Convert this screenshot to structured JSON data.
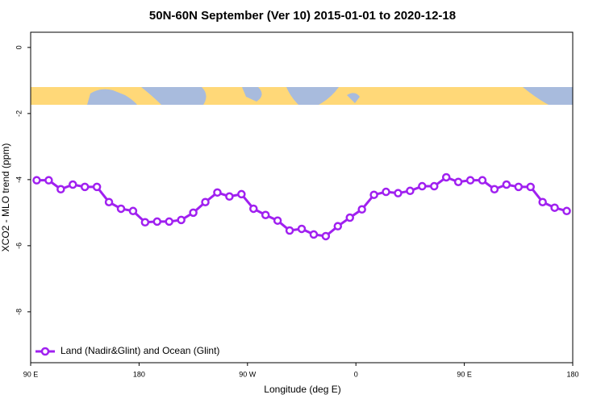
{
  "chart_data": {
    "type": "line",
    "title": "50N-60N September (Ver 10)   2015-01-01 to 2020-12-18",
    "xlabel": "Longitude (deg E)",
    "ylabel": "XCO2 - MLO trend (ppm)",
    "x": [
      95,
      105,
      115,
      125,
      135,
      145,
      155,
      165,
      175,
      185,
      195,
      205,
      215,
      225,
      235,
      245,
      255,
      265,
      275,
      285,
      295,
      305,
      315,
      325,
      335,
      345,
      355,
      365,
      375,
      385,
      395,
      405,
      415,
      425,
      435,
      445,
      455,
      465,
      475,
      485,
      495,
      505,
      515,
      525,
      535
    ],
    "series": [
      {
        "name": "Land (Nadir&Glint) and Ocean (Glint)",
        "color": "#a020f0",
        "values": [
          -4.02,
          -4.02,
          -4.29,
          -4.15,
          -4.22,
          -4.22,
          -4.68,
          -4.88,
          -4.95,
          -5.29,
          -5.27,
          -5.27,
          -5.22,
          -5.0,
          -4.68,
          -4.39,
          -4.51,
          -4.44,
          -4.88,
          -5.07,
          -5.24,
          -5.54,
          -5.49,
          -5.66,
          -5.71,
          -5.41,
          -5.15,
          -4.9,
          -4.46,
          -4.37,
          -4.41,
          -4.34,
          -4.2,
          -4.2,
          -3.93,
          -4.07,
          -4.02,
          -4.02,
          -4.29,
          -4.15,
          -4.22,
          -4.22,
          -4.68,
          -4.85,
          -4.95
        ]
      }
    ],
    "xlim": [
      90,
      540
    ],
    "ylim": [
      -9.54,
      0.46
    ],
    "xticks": [
      {
        "value": 90,
        "label": "90 E"
      },
      180,
      {
        "value": 270,
        "label": "90 W"
      },
      {
        "value": 360,
        "label": "0"
      },
      {
        "value": 450,
        "label": "90 E"
      },
      {
        "value": 540,
        "label": "180"
      }
    ],
    "yticks": [
      0,
      -2,
      -4,
      -6,
      -8
    ],
    "legend": "bottomleft"
  }
}
